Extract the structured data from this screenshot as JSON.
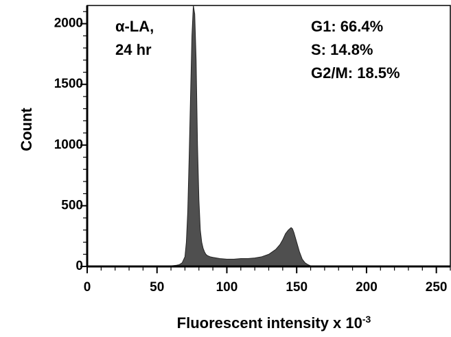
{
  "chart_data": {
    "type": "histogram",
    "xlabel": "Fluorescent intensity x 10",
    "xlabel_exponent": "-3",
    "ylabel": "Count",
    "xlim": [
      0,
      260
    ],
    "ylim": [
      0,
      2150
    ],
    "x_ticks": [
      "0",
      "50",
      "100",
      "150",
      "200",
      "250"
    ],
    "y_ticks": [
      "0",
      "500",
      "1000",
      "1500",
      "2000"
    ],
    "annotations": {
      "sample": [
        "α-LA,",
        "24 hr"
      ],
      "phases": [
        "G1: 66.4%",
        "S: 14.8%",
        "G2/M: 18.5%"
      ]
    },
    "series": [
      {
        "x": [
          50,
          56,
          60,
          64,
          66,
          68,
          70,
          71,
          72,
          73,
          74,
          75,
          76,
          77,
          78,
          79,
          80,
          81,
          82,
          83,
          84,
          85,
          86,
          88,
          90,
          95,
          100,
          105,
          110,
          115,
          120,
          125,
          130,
          135,
          138,
          140,
          142,
          144,
          146,
          147,
          148,
          150,
          152,
          154,
          156,
          158,
          160,
          165,
          170,
          175
        ],
        "values": [
          0,
          0,
          5,
          10,
          15,
          30,
          80,
          200,
          450,
          900,
          1400,
          1900,
          2150,
          2080,
          1700,
          1000,
          550,
          300,
          200,
          150,
          120,
          100,
          90,
          80,
          75,
          65,
          60,
          60,
          65,
          65,
          70,
          80,
          100,
          140,
          180,
          220,
          270,
          300,
          320,
          310,
          280,
          200,
          120,
          60,
          30,
          15,
          5,
          3,
          0,
          0
        ]
      }
    ],
    "colors": {
      "fill": "#4f4f4f",
      "axis": "#000000"
    }
  }
}
